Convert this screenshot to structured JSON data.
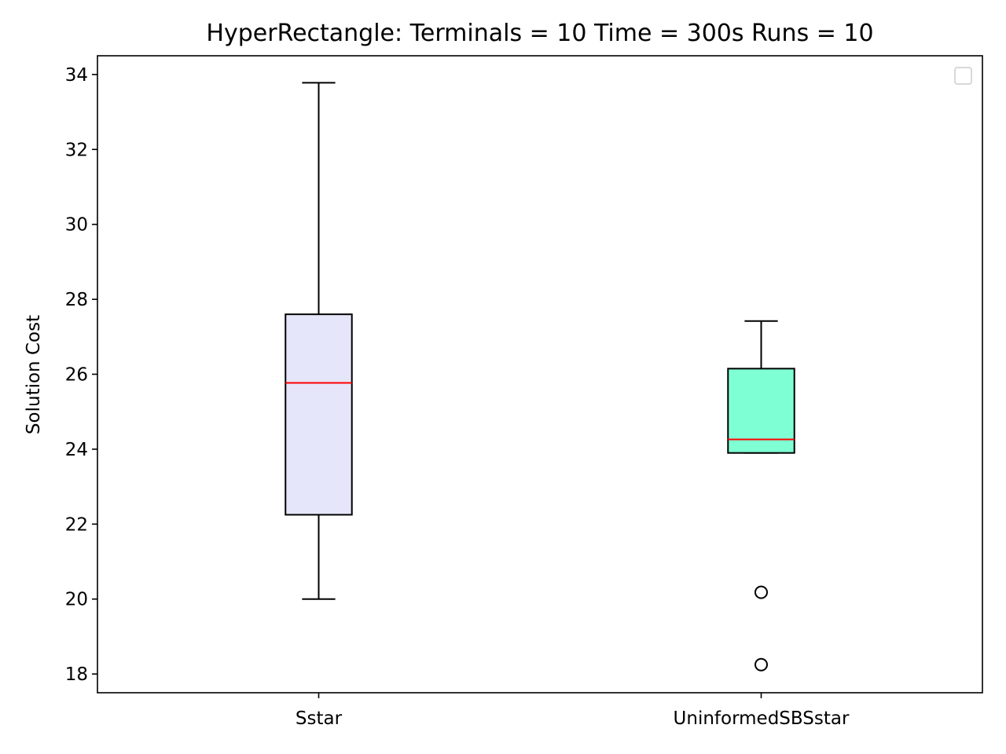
{
  "chart_data": {
    "type": "boxplot",
    "title": "HyperRectangle:  Terminals = 10  Time = 300s  Runs = 10",
    "xlabel": "",
    "ylabel": "Solution Cost",
    "ylim": [
      17.5,
      34.5
    ],
    "yticks": [
      18,
      20,
      22,
      24,
      26,
      28,
      30,
      32,
      34
    ],
    "grid": false,
    "legend": "top-right",
    "legend_entries": [],
    "categories": [
      "Sstar",
      "UninformedSBSstar"
    ],
    "boxes": [
      {
        "category": "Sstar",
        "whisker_low": 20.0,
        "q1": 22.25,
        "median": 25.77,
        "q3": 27.6,
        "whisker_high": 33.78,
        "outliers": [],
        "fill_color": "#e6e6fa"
      },
      {
        "category": "UninformedSBSstar",
        "whisker_low": 23.9,
        "q1": 23.9,
        "median": 24.26,
        "q3": 26.15,
        "whisker_high": 27.42,
        "outliers": [
          20.18,
          18.25
        ],
        "fill_color": "#7fffd4"
      }
    ],
    "colors": {
      "median": "#ff0000",
      "box_edge": "#000000",
      "axes": "#000000"
    }
  }
}
